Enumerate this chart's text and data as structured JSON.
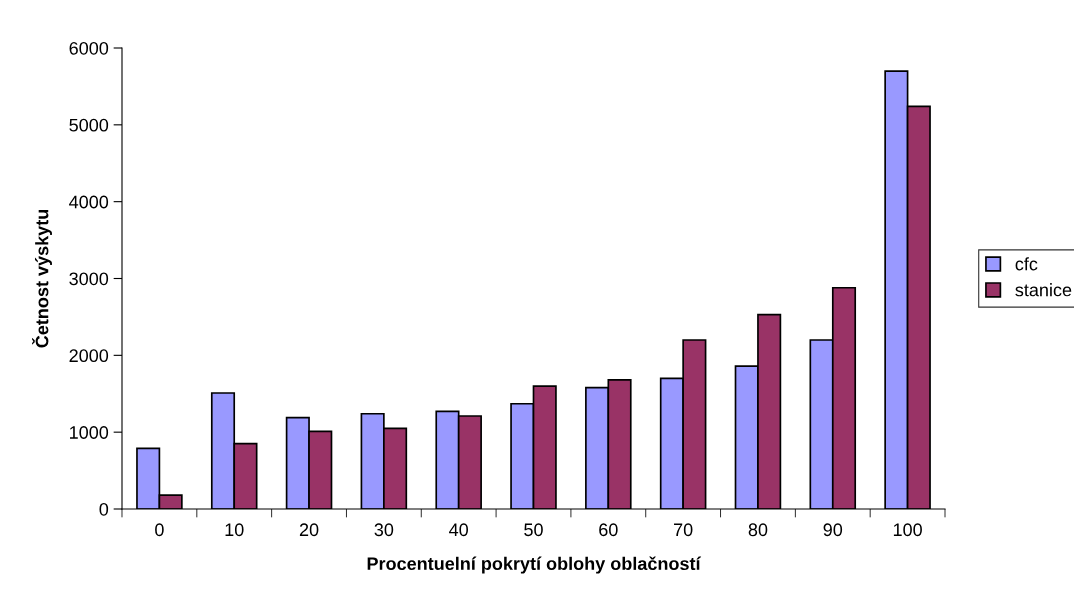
{
  "chart_data": {
    "type": "bar",
    "xlabel": "Procentuelní pokrytí oblohy oblačností",
    "ylabel": "Četnost výskytu",
    "categories": [
      "0",
      "10",
      "20",
      "30",
      "40",
      "50",
      "60",
      "70",
      "80",
      "90",
      "100"
    ],
    "series": [
      {
        "name": "cfc",
        "color": "#9999ff",
        "values": [
          790,
          1510,
          1190,
          1240,
          1270,
          1370,
          1580,
          1700,
          1860,
          2200,
          5700
        ]
      },
      {
        "name": "stanice",
        "color": "#993366",
        "values": [
          180,
          850,
          1010,
          1050,
          1210,
          1600,
          1680,
          2200,
          2530,
          2880,
          5240
        ]
      }
    ],
    "ylim": [
      0,
      6000
    ],
    "yticks": [
      0,
      1000,
      2000,
      3000,
      4000,
      5000,
      6000
    ],
    "grid": false,
    "legend": "right"
  }
}
